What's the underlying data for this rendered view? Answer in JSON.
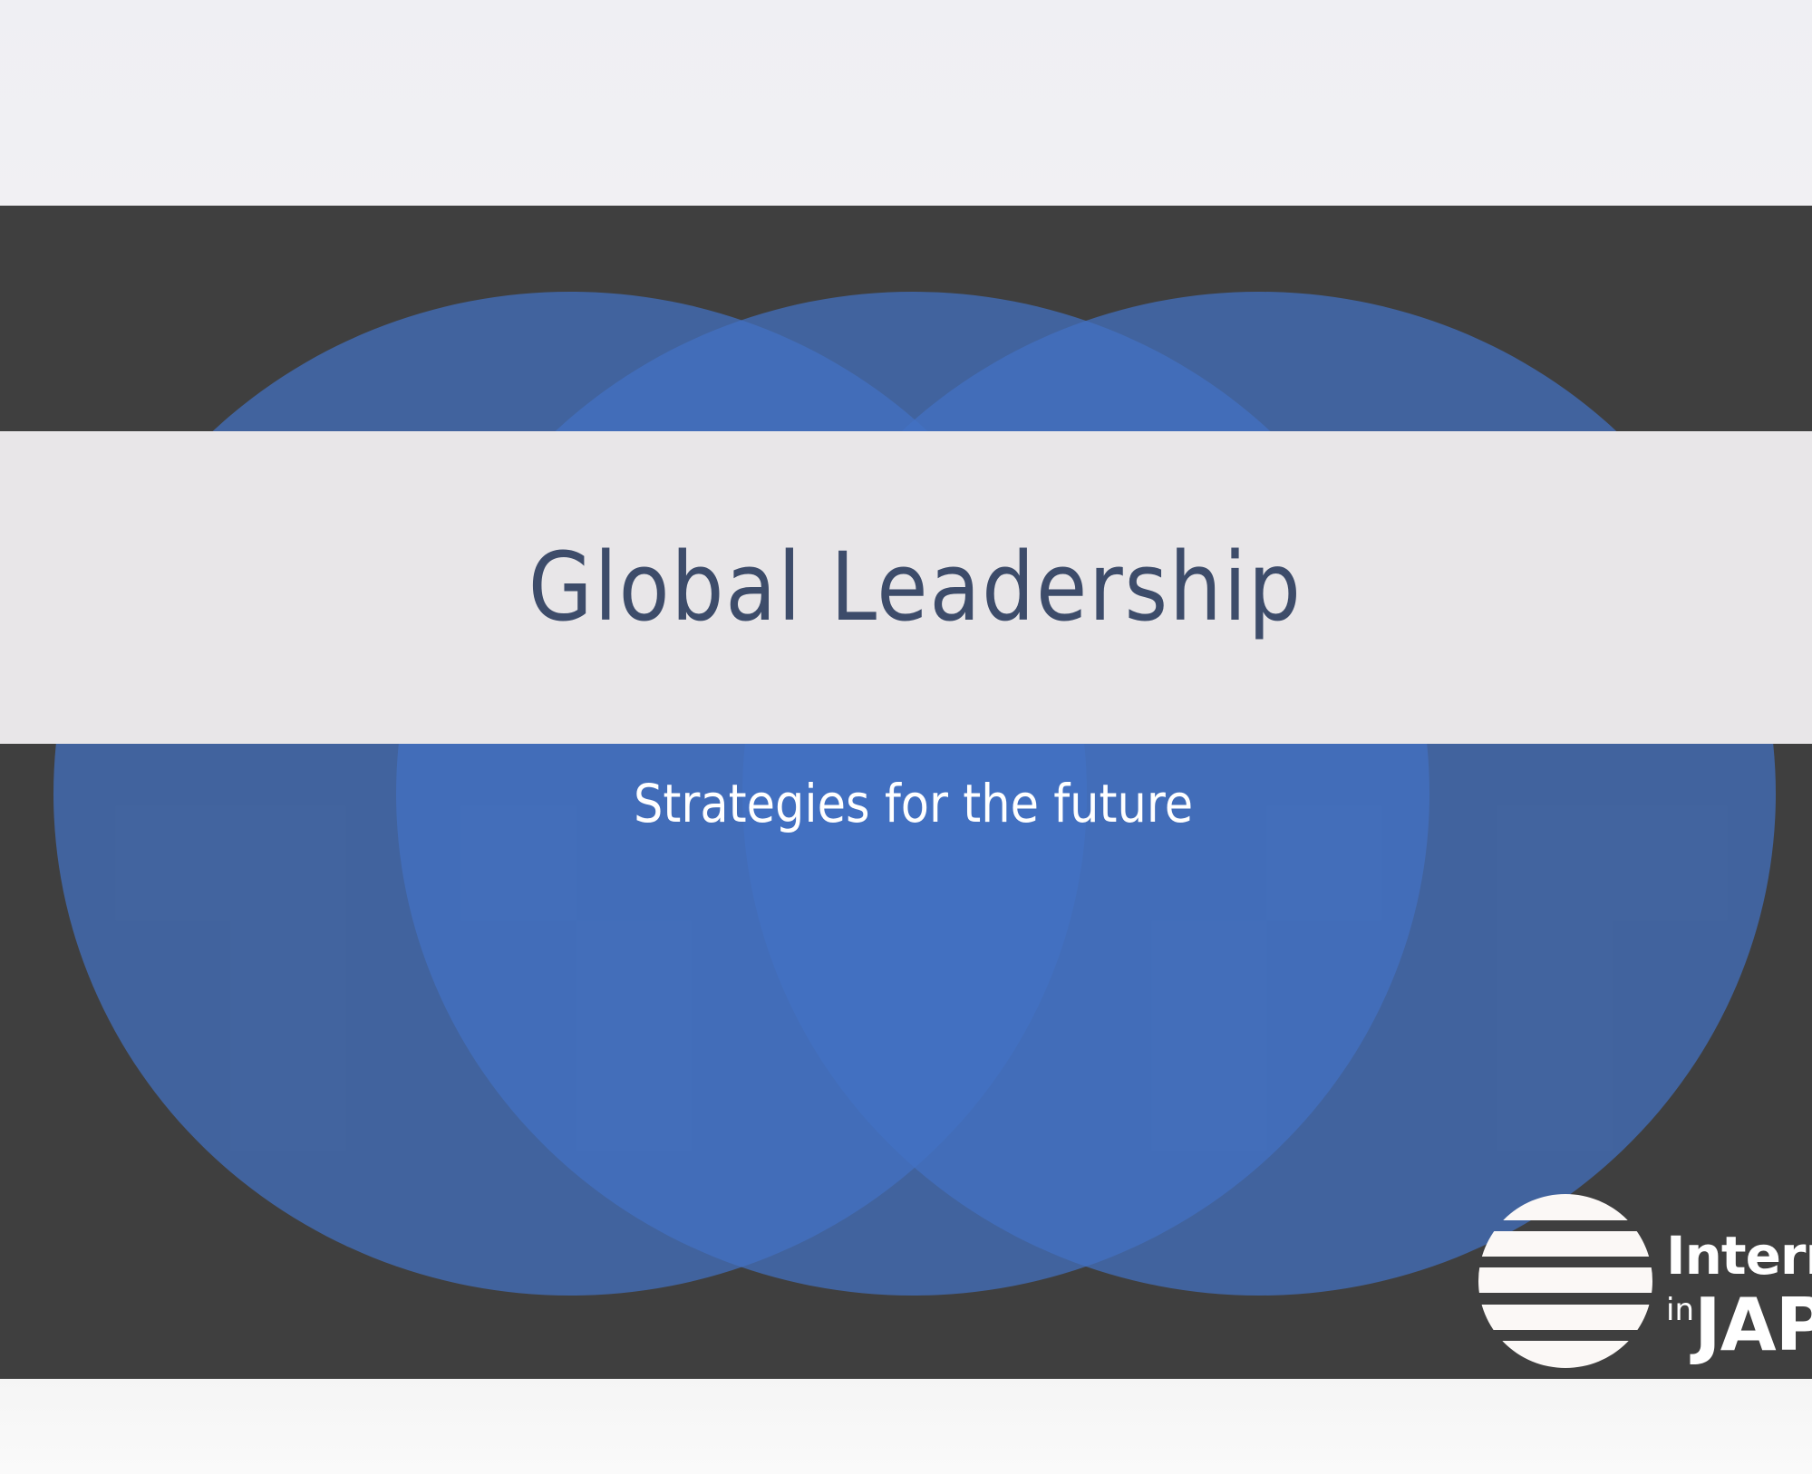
{
  "slide": {
    "title": "Global Leadership",
    "subtitle": "Strategies for the future"
  },
  "logo": {
    "line1": "Intern",
    "line2_small": "in",
    "line2_large": "JAP",
    "mark_icon": "striped-sun-icon"
  },
  "colors": {
    "slide_background": "#3f3f3f",
    "circle_fill": "#4372c4",
    "title_band": "#e8e6e8",
    "title_text": "#3d4c6a",
    "subtitle_text": "#ffffff"
  }
}
